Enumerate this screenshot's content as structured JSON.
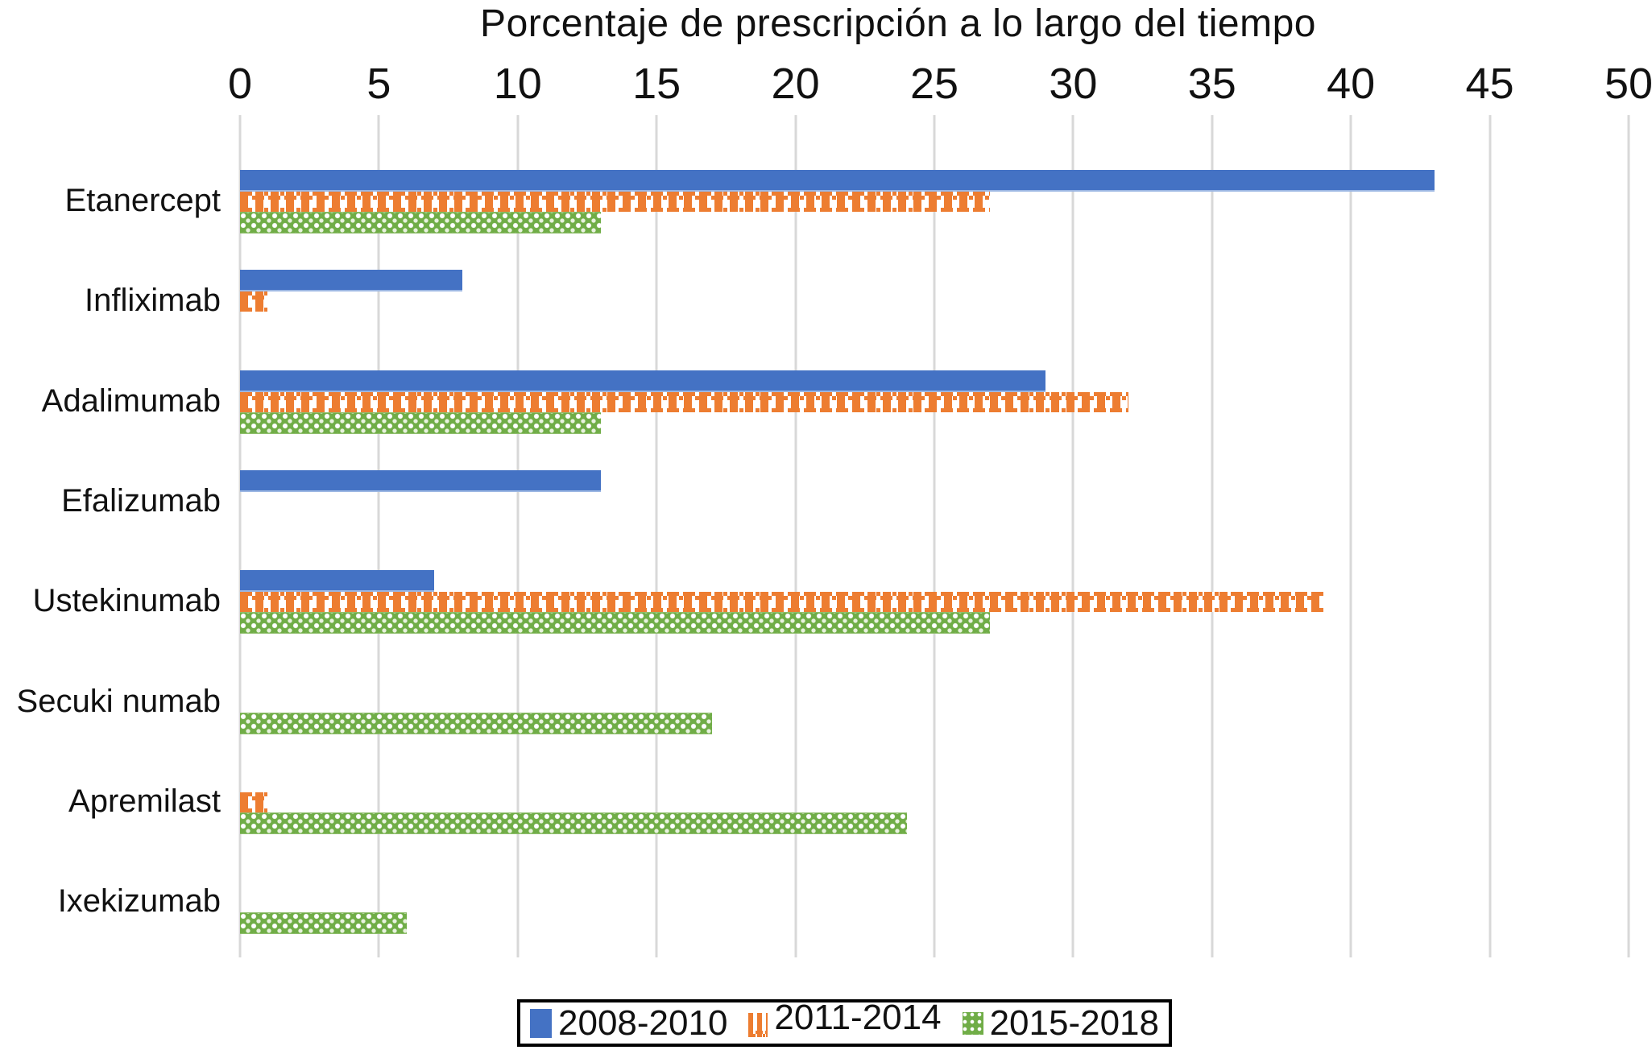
{
  "title": "Porcentaje de prescripción a lo largo del tiempo",
  "chart_data": {
    "type": "bar",
    "orientation": "horizontal",
    "title": "Porcentaje de prescripción a lo largo del tiempo",
    "xlabel": "",
    "ylabel": "",
    "xlim": [
      0,
      50
    ],
    "xticks": [
      0,
      5,
      10,
      15,
      20,
      25,
      30,
      35,
      40,
      45,
      50
    ],
    "grid": "vertical-gridlines",
    "legend_position": "bottom",
    "categories": [
      "Etanercept",
      "Infliximab",
      "Adalimumab",
      "Efalizumab",
      "Ustekinumab",
      "Secuki numab",
      "Apremilast",
      "Ixekizumab"
    ],
    "series": [
      {
        "name": "2008-2010",
        "color": "#4472C4",
        "pattern": "solid",
        "values": [
          43,
          8,
          29,
          13,
          7,
          0,
          0,
          0
        ]
      },
      {
        "name": "2011-2014",
        "color": "#ED7D31",
        "pattern": "checker-stripe",
        "values": [
          27,
          1,
          32,
          0,
          39,
          0,
          1,
          0
        ]
      },
      {
        "name": "2015-2018",
        "color": "#70AD47",
        "pattern": "dotted",
        "values": [
          13,
          0,
          13,
          0,
          27,
          17,
          24,
          6
        ]
      }
    ]
  }
}
